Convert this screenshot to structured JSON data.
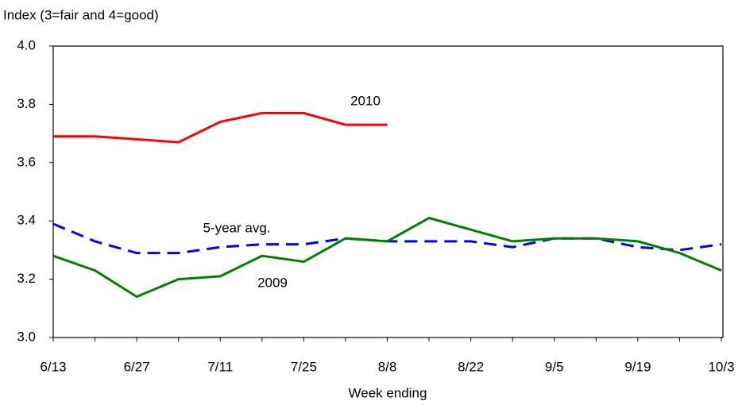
{
  "chart_data": {
    "type": "line",
    "y_label": "Index (3=fair and 4=good)",
    "x_label": "Week ending",
    "categories": [
      "6/13",
      null,
      "6/27",
      null,
      "7/11",
      null,
      "7/25",
      null,
      "8/8",
      null,
      "8/22",
      null,
      "9/5",
      null,
      "9/19",
      null,
      "10/3"
    ],
    "series": [
      {
        "name": "2010",
        "color": "#ff0000",
        "style": "solid",
        "values": [
          3.69,
          3.69,
          3.68,
          3.67,
          3.74,
          3.77,
          3.77,
          3.73,
          3.73,
          null,
          null,
          null,
          null,
          null,
          null,
          null,
          null
        ]
      },
      {
        "name": "5-year avg.",
        "color": "#0000ff",
        "style": "dashed",
        "values": [
          3.39,
          3.33,
          3.29,
          3.29,
          3.31,
          3.32,
          3.32,
          3.34,
          3.33,
          3.33,
          3.33,
          3.31,
          3.34,
          3.34,
          3.31,
          3.3,
          3.32
        ]
      },
      {
        "name": "2009",
        "color": "#008000",
        "style": "solid",
        "values": [
          3.28,
          3.23,
          3.14,
          3.2,
          3.21,
          3.28,
          3.26,
          3.34,
          3.33,
          3.41,
          3.37,
          3.33,
          3.34,
          3.34,
          3.33,
          3.29,
          3.23
        ]
      }
    ],
    "ylim": [
      3.0,
      4.0
    ],
    "yticks": [
      {
        "value": 3.0,
        "label": "3.0"
      },
      3.2,
      3.4,
      3.6,
      3.8,
      {
        "value": 4.0,
        "label": "4.0"
      }
    ],
    "grid": false
  }
}
